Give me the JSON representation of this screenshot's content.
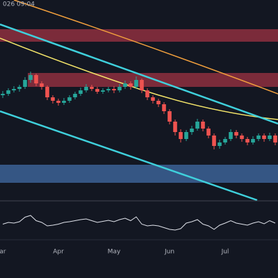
{
  "chart_data": {
    "type": "candlestick",
    "annotation": "026 09:04",
    "categories": [
      "Mar",
      null,
      null,
      null,
      null,
      null,
      null,
      null,
      null,
      null,
      "Apr",
      null,
      null,
      null,
      null,
      null,
      null,
      null,
      null,
      null,
      "May",
      null,
      null,
      null,
      null,
      null,
      null,
      null,
      null,
      null,
      "Jun",
      null,
      null,
      null,
      null,
      null,
      null,
      null,
      null,
      null,
      "Jul",
      null,
      null,
      null,
      null,
      null,
      null,
      null,
      null,
      null
    ],
    "open": [
      148,
      150,
      155,
      157,
      160,
      170,
      177,
      165,
      160,
      145,
      140,
      137,
      140,
      145,
      150,
      155,
      160,
      157,
      153,
      155,
      157,
      155,
      160,
      165,
      160,
      170,
      155,
      145,
      140,
      135,
      125,
      110,
      95,
      85,
      95,
      100,
      110,
      100,
      90,
      75,
      80,
      85,
      95,
      90,
      85,
      80,
      85,
      90,
      85,
      90
    ],
    "high": [
      154,
      158,
      161,
      163,
      174,
      182,
      179,
      168,
      162,
      148,
      143,
      144,
      148,
      153,
      159,
      164,
      163,
      160,
      158,
      160,
      161,
      164,
      169,
      168,
      175,
      172,
      158,
      148,
      143,
      138,
      128,
      113,
      99,
      98,
      104,
      114,
      113,
      103,
      93,
      84,
      88,
      99,
      98,
      93,
      88,
      89,
      93,
      93,
      94,
      93
    ],
    "low": [
      144,
      147,
      152,
      153,
      157,
      166,
      161,
      156,
      141,
      136,
      133,
      134,
      137,
      142,
      147,
      152,
      154,
      150,
      150,
      152,
      151,
      152,
      157,
      156,
      157,
      151,
      141,
      136,
      131,
      121,
      106,
      90,
      80,
      82,
      91,
      97,
      96,
      86,
      70,
      71,
      77,
      82,
      86,
      81,
      76,
      77,
      82,
      81,
      82,
      76
    ],
    "close": [
      150,
      155,
      157,
      160,
      170,
      177,
      165,
      160,
      145,
      140,
      137,
      140,
      145,
      150,
      155,
      160,
      157,
      153,
      155,
      157,
      155,
      160,
      165,
      160,
      170,
      155,
      145,
      140,
      135,
      125,
      110,
      95,
      85,
      95,
      100,
      110,
      100,
      90,
      75,
      80,
      85,
      95,
      90,
      85,
      80,
      85,
      90,
      85,
      90,
      80
    ],
    "up_color": "#26a69a",
    "down_color": "#ef5350",
    "ylim": [
      0,
      285
    ],
    "indicator": {
      "values": [
        45,
        50,
        48,
        52,
        65,
        70,
        55,
        50,
        40,
        42,
        45,
        50,
        52,
        55,
        58,
        60,
        55,
        50,
        53,
        56,
        52,
        58,
        62,
        55,
        66,
        45,
        40,
        42,
        40,
        35,
        30,
        28,
        32,
        48,
        52,
        58,
        45,
        40,
        30,
        42,
        48,
        55,
        48,
        45,
        42,
        48,
        52,
        46,
        55,
        48
      ],
      "color": "#e0e3eb",
      "ylim": [
        0,
        100
      ]
    }
  }
}
